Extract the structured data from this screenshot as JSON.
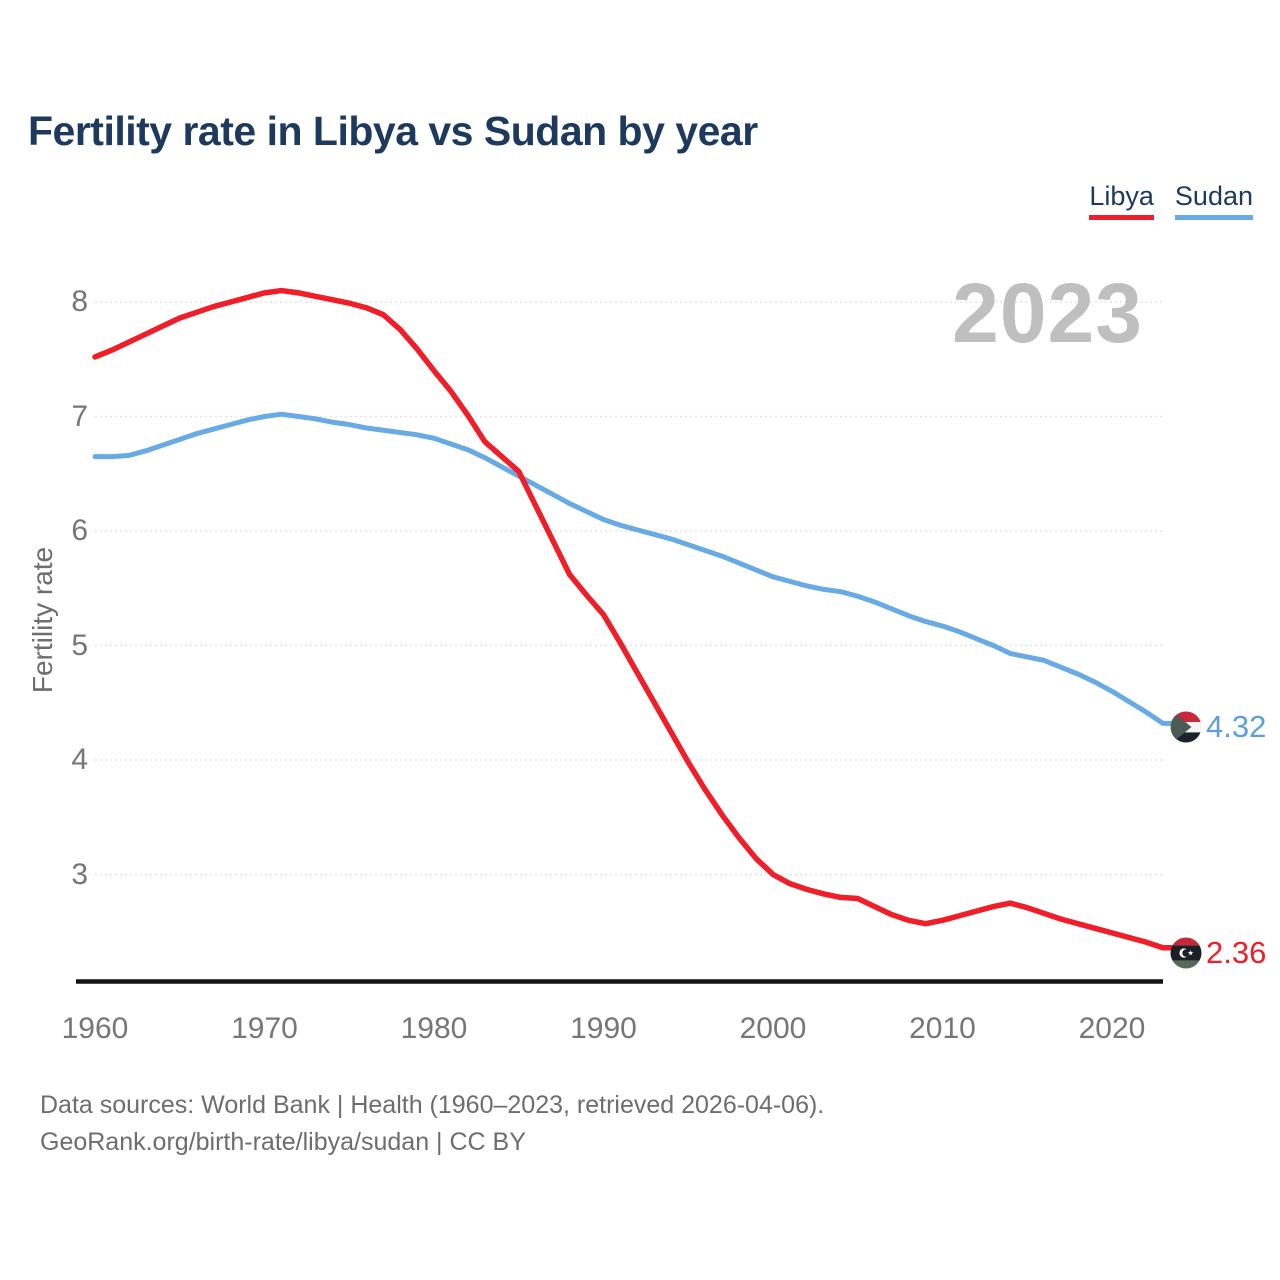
{
  "title": "Fertility rate in Libya vs Sudan by year",
  "watermark": "2023",
  "legend": [
    {
      "label": "Libya",
      "color": "#ef1e28"
    },
    {
      "label": "Sudan",
      "color": "#68aae3"
    }
  ],
  "y_axis": {
    "label": "Fertility rate",
    "ticks": [
      8,
      7,
      6,
      5,
      4,
      3
    ]
  },
  "x_axis": {
    "ticks": [
      1960,
      1970,
      1980,
      1990,
      2000,
      2010,
      2020
    ]
  },
  "end_labels": [
    {
      "series": "Sudan",
      "value": "4.32",
      "flag": "sudan-flag"
    },
    {
      "series": "Libya",
      "value": "2.36",
      "flag": "libya-flag"
    }
  ],
  "footer": {
    "line1": "Data sources: World Bank | Health (1960–2023, retrieved 2026-04-06).",
    "line2": "GeoRank.org/birth-rate/libya/sudan | CC BY"
  },
  "chart_data": {
    "type": "line",
    "title": "Fertility rate in Libya vs Sudan by year",
    "xlabel": "",
    "ylabel": "Fertility rate",
    "xlim": [
      1960,
      2023
    ],
    "ylim": [
      2.05,
      8.35
    ],
    "grid": "horizontal-dotted",
    "legend_position": "top-right",
    "x": [
      1960,
      1961,
      1962,
      1963,
      1964,
      1965,
      1966,
      1967,
      1968,
      1969,
      1970,
      1971,
      1972,
      1973,
      1974,
      1975,
      1976,
      1977,
      1978,
      1979,
      1980,
      1981,
      1982,
      1983,
      1984,
      1985,
      1986,
      1987,
      1988,
      1989,
      1990,
      1991,
      1992,
      1993,
      1994,
      1995,
      1996,
      1997,
      1998,
      1999,
      2000,
      2001,
      2002,
      2003,
      2004,
      2005,
      2006,
      2007,
      2008,
      2009,
      2010,
      2011,
      2012,
      2013,
      2014,
      2015,
      2016,
      2017,
      2018,
      2019,
      2020,
      2021,
      2022,
      2023
    ],
    "series": [
      {
        "name": "Libya",
        "color": "#ef1e28",
        "values": [
          7.52,
          7.58,
          7.65,
          7.72,
          7.79,
          7.86,
          7.91,
          7.96,
          8.0,
          8.04,
          8.08,
          8.1,
          8.08,
          8.05,
          8.02,
          7.99,
          7.95,
          7.89,
          7.76,
          7.59,
          7.4,
          7.22,
          7.01,
          6.78,
          6.65,
          6.52,
          6.22,
          5.92,
          5.62,
          5.44,
          5.27,
          5.02,
          4.76,
          4.5,
          4.24,
          3.98,
          3.74,
          3.52,
          3.32,
          3.14,
          3.0,
          2.92,
          2.87,
          2.83,
          2.8,
          2.79,
          2.72,
          2.65,
          2.6,
          2.57,
          2.6,
          2.64,
          2.68,
          2.72,
          2.75,
          2.71,
          2.66,
          2.61,
          2.57,
          2.53,
          2.49,
          2.45,
          2.41,
          2.36
        ]
      },
      {
        "name": "Sudan",
        "color": "#68aae3",
        "values": [
          6.65,
          6.65,
          6.66,
          6.7,
          6.75,
          6.8,
          6.85,
          6.89,
          6.93,
          6.97,
          7.0,
          7.02,
          7.0,
          6.98,
          6.95,
          6.93,
          6.9,
          6.88,
          6.86,
          6.84,
          6.81,
          6.76,
          6.71,
          6.64,
          6.56,
          6.48,
          6.4,
          6.32,
          6.24,
          6.17,
          6.1,
          6.05,
          6.01,
          5.97,
          5.93,
          5.88,
          5.83,
          5.78,
          5.72,
          5.66,
          5.6,
          5.56,
          5.52,
          5.49,
          5.47,
          5.43,
          5.38,
          5.32,
          5.26,
          5.21,
          5.17,
          5.12,
          5.06,
          5.0,
          4.93,
          4.9,
          4.87,
          4.81,
          4.75,
          4.68,
          4.6,
          4.51,
          4.42,
          4.32
        ]
      }
    ]
  }
}
